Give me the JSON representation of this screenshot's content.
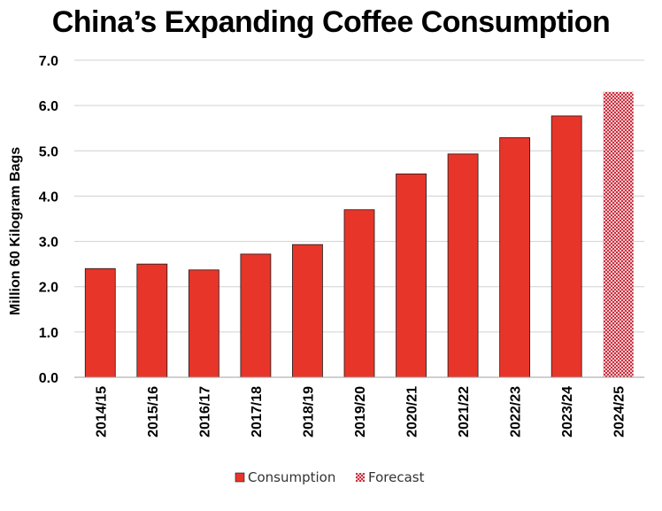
{
  "chart_data": {
    "type": "bar",
    "title": "China’s Expanding Coffee Consumption",
    "xlabel": "",
    "ylabel": "Million 60 Kilogram Bags",
    "ylim": [
      0,
      7
    ],
    "yticks": [
      "0.0",
      "1.0",
      "2.0",
      "3.0",
      "4.0",
      "5.0",
      "6.0",
      "7.0"
    ],
    "grid": true,
    "legend_position": "bottom",
    "categories": [
      "2014/15",
      "2015/16",
      "2016/17",
      "2017/18",
      "2018/19",
      "2019/20",
      "2020/21",
      "2021/22",
      "2022/23",
      "2023/24",
      "2024/25"
    ],
    "series": [
      {
        "name": "Consumption",
        "color": "#e8352a",
        "pattern": "solid",
        "values": [
          2.4,
          2.5,
          2.37,
          2.72,
          2.93,
          3.7,
          4.49,
          4.93,
          5.29,
          5.77,
          null
        ]
      },
      {
        "name": "Forecast",
        "color": "#c8313f",
        "pattern": "dotted-hatch",
        "values": [
          null,
          null,
          null,
          null,
          null,
          null,
          null,
          null,
          null,
          null,
          6.3
        ]
      }
    ]
  }
}
